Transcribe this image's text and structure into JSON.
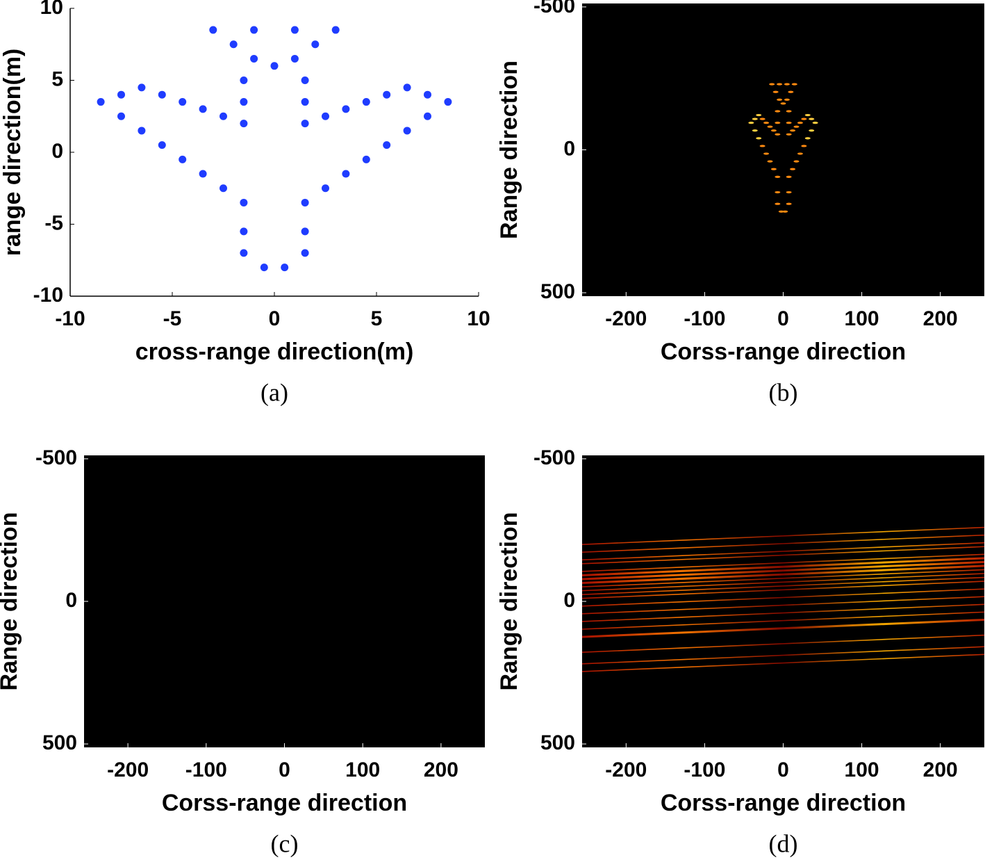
{
  "chart_data": [
    {
      "type": "scatter",
      "caption": "(a)",
      "xlabel": "cross-range direction(m)",
      "ylabel": "range direction(m)",
      "color": "#1f3cff",
      "x": [
        -3,
        -1,
        1,
        3,
        -2,
        2,
        -1,
        1,
        0,
        -1.5,
        1.5,
        -6.5,
        6.5,
        -7.5,
        -5.5,
        5.5,
        7.5,
        -8.5,
        -4.5,
        -1.5,
        1.5,
        4.5,
        8.5,
        -3.5,
        3.5,
        -7.5,
        -2.5,
        2.5,
        7.5,
        -1.5,
        1.5,
        -6.5,
        6.5,
        -5.5,
        5.5,
        -4.5,
        4.5,
        -3.5,
        3.5,
        -2.5,
        2.5,
        -1.5,
        1.5,
        -1.5,
        1.5,
        -1.5,
        1.5,
        -0.5,
        0.5
      ],
      "values": [
        8.5,
        8.5,
        8.5,
        8.5,
        7.5,
        7.5,
        6.5,
        6.5,
        6,
        5,
        5,
        4.5,
        4.5,
        4,
        4,
        4,
        4,
        3.5,
        3.5,
        3.5,
        3.5,
        3.5,
        3.5,
        3,
        3,
        2.5,
        2.5,
        2.5,
        2.5,
        2,
        2,
        1.5,
        1.5,
        0.5,
        0.5,
        -0.5,
        -0.5,
        -1.5,
        -1.5,
        -2.5,
        -2.5,
        -3.5,
        -3.5,
        -5.5,
        -5.5,
        -7,
        -7,
        -8,
        -8
      ],
      "xlim": [
        -10,
        10
      ],
      "ylim": [
        -10,
        10
      ],
      "xticks": [
        -10,
        -5,
        0,
        5,
        10
      ],
      "yticks": [
        -10,
        -5,
        0,
        5,
        10
      ]
    },
    {
      "type": "heatmap",
      "caption": "(b)",
      "xlabel": "Corss-range direction",
      "ylabel": "Range direction",
      "pattern": "focused",
      "xlim": [
        -256,
        256
      ],
      "ylim": [
        -512,
        512
      ],
      "y_reversed": true,
      "xticks": [
        -200,
        -100,
        0,
        100,
        200
      ],
      "yticks": [
        -500,
        0,
        500
      ]
    },
    {
      "type": "heatmap",
      "caption": "(c)",
      "xlabel": "Corss-range direction",
      "ylabel": "Range direction",
      "pattern": "unfocused",
      "xlim": [
        -256,
        256
      ],
      "ylim": [
        -512,
        512
      ],
      "y_reversed": true,
      "xticks": [
        -200,
        -100,
        0,
        100,
        200
      ],
      "yticks": [
        -500,
        0,
        500
      ]
    },
    {
      "type": "heatmap",
      "caption": "(d)",
      "xlabel": "Corss-range direction",
      "ylabel": "Range direction",
      "pattern": "tilted",
      "xlim": [
        -256,
        256
      ],
      "ylim": [
        -512,
        512
      ],
      "y_reversed": true,
      "xticks": [
        -200,
        -100,
        0,
        100,
        200
      ],
      "yticks": [
        -500,
        0,
        500
      ]
    }
  ]
}
